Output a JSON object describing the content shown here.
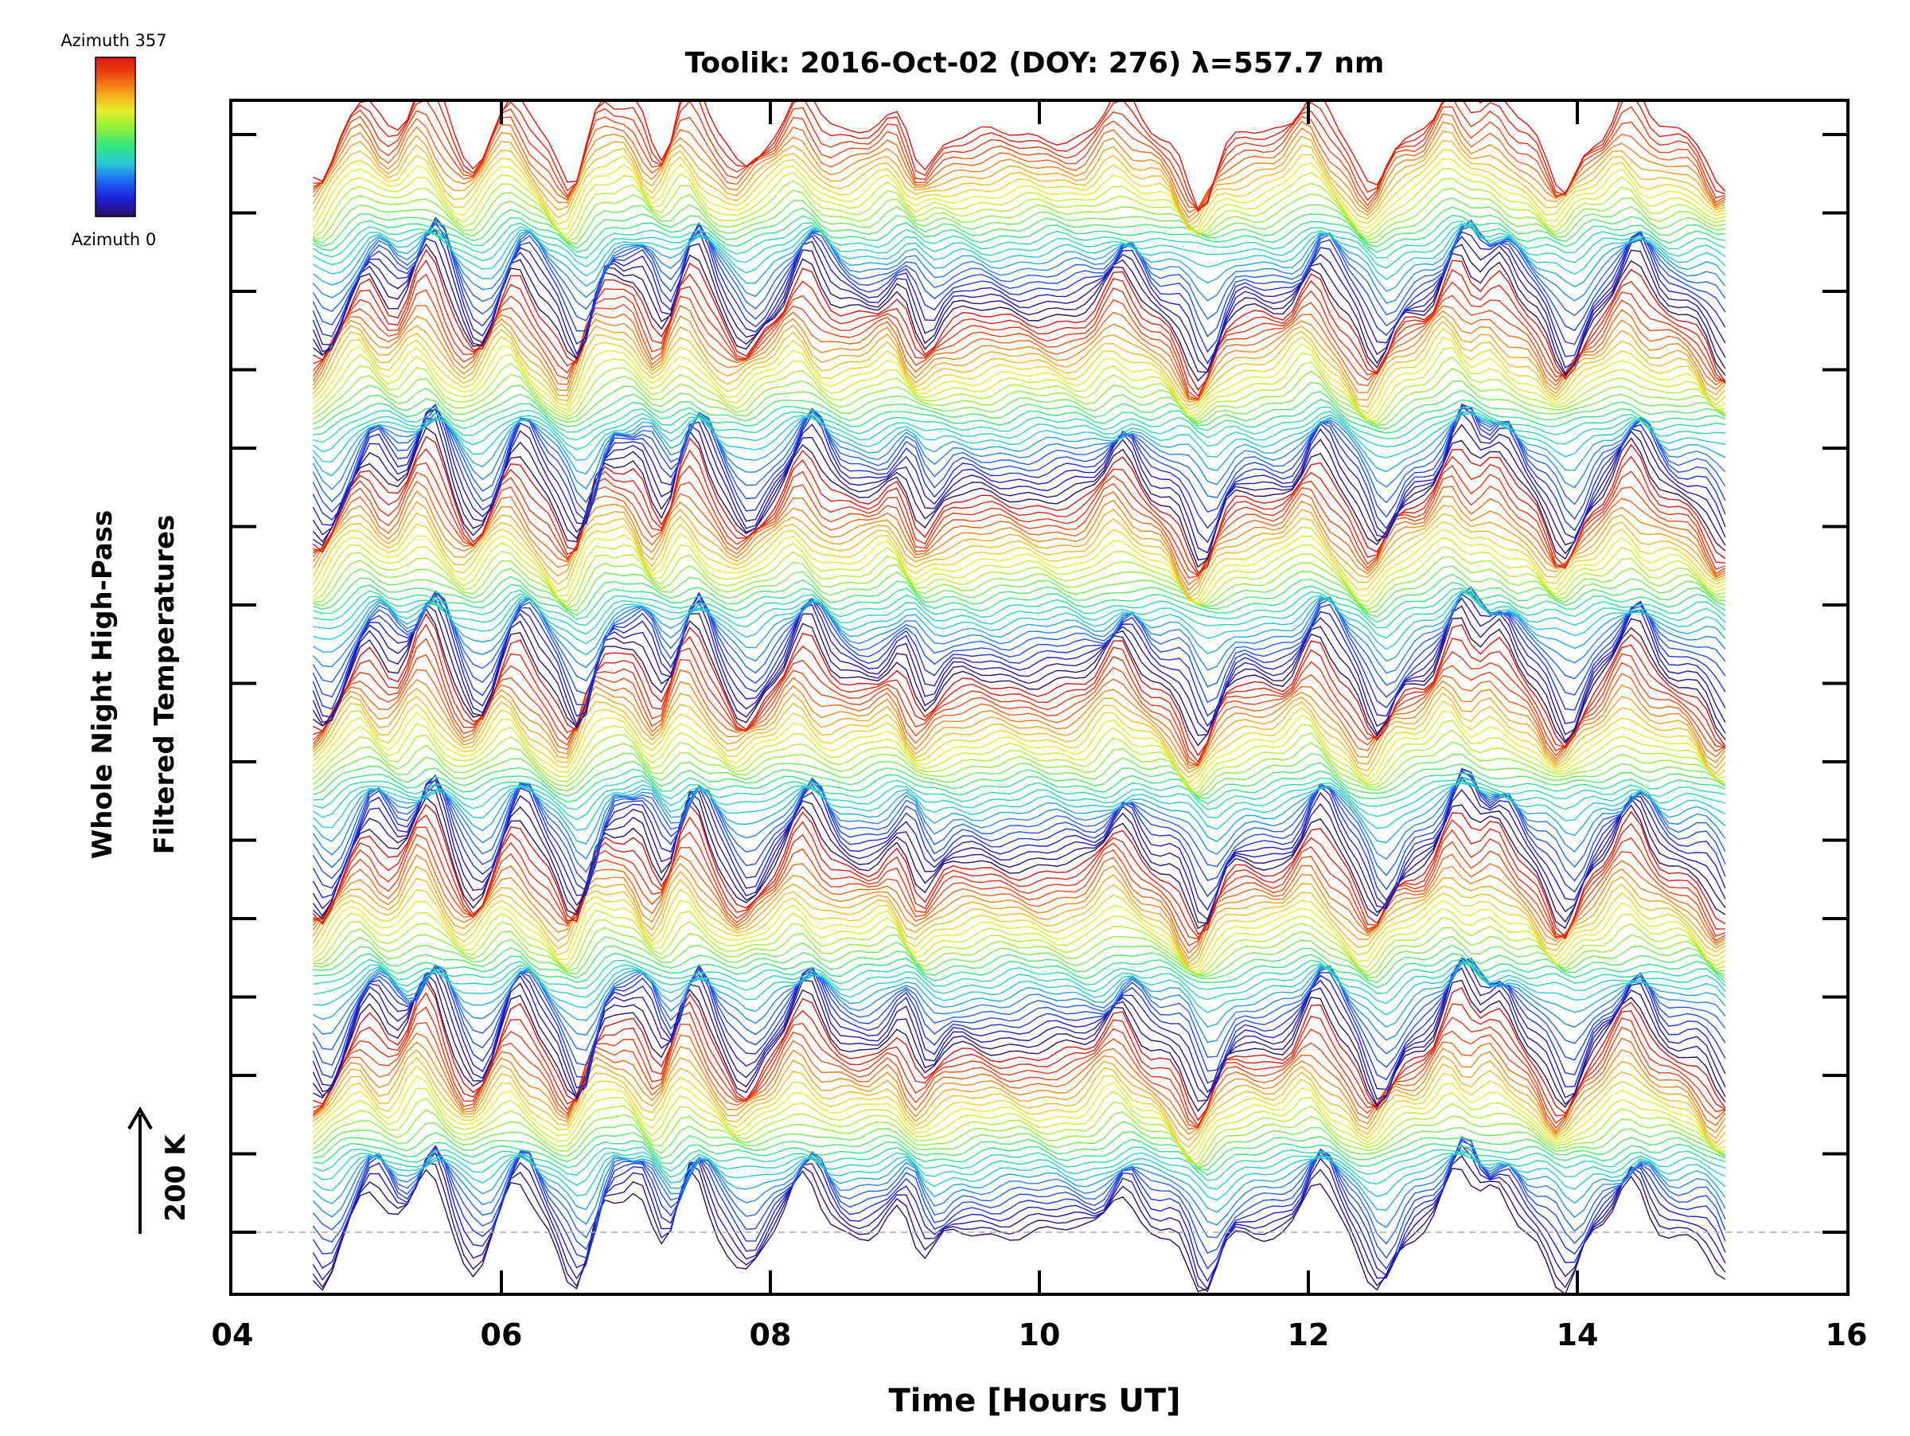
{
  "chart_data": {
    "type": "line",
    "title": "Toolik: 2016-Oct-02 (DOY: 276) λ=557.7 nm",
    "xlabel": "Time [Hours UT]",
    "ylabel_line1": "Whole Night High-Pass",
    "ylabel_line2": "Filtered Temperatures",
    "xlim": [
      4,
      16
    ],
    "x_ticks": [
      "04",
      "06",
      "08",
      "10",
      "12",
      "14",
      "16"
    ],
    "time_range": [
      4.6,
      15.1
    ],
    "series_count": 168,
    "series_offset_K": 11,
    "scale_bar_label": "200 K",
    "colorbar_top_label": "Azimuth 357",
    "colorbar_bottom_label": "Azimuth 0",
    "colormap": [
      "#2c0f5e",
      "#1c1ed6",
      "#1f66f5",
      "#27c9d8",
      "#34e67f",
      "#8ff03a",
      "#e8ec2a",
      "#f7a21b",
      "#ef4a12",
      "#d8160f"
    ],
    "baseline_color": "#aaaaaa",
    "common_signal": {
      "peak_times": [
        5.0,
        5.45,
        6.1,
        6.75,
        7.0,
        7.4,
        8.25,
        9.0,
        10.6,
        12.05,
        13.1,
        13.4,
        14.4
      ],
      "peak_heights_K": [
        60,
        90,
        70,
        55,
        55,
        85,
        75,
        65,
        60,
        70,
        90,
        60,
        70
      ],
      "trough_times": [
        4.65,
        5.8,
        6.55,
        7.2,
        7.8,
        9.1,
        11.2,
        12.5,
        13.9,
        15.1
      ],
      "trough_heights_K": [
        -70,
        -50,
        -80,
        -40,
        -50,
        -70,
        -95,
        -80,
        -80,
        -75
      ]
    }
  }
}
